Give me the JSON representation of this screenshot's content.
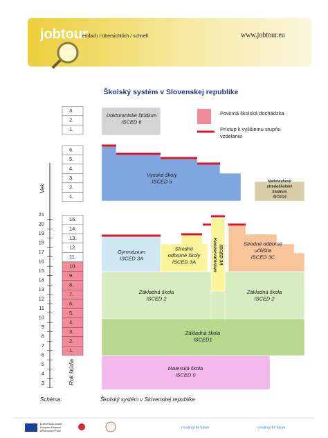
{
  "header": {
    "logo": "jobtour",
    "tagline": "einfach / übersichtlich / schnell",
    "url": "www.jobtour.eu"
  },
  "title": "Školský systém v Slovenskej republike",
  "age_axis": {
    "label": "Vek",
    "ages": [
      "3",
      "4",
      "5",
      "6",
      "7",
      "8",
      "9",
      "10",
      "11",
      "12",
      "13",
      "14",
      "15",
      "16",
      "17",
      "18",
      "19",
      "20",
      "21"
    ]
  },
  "year_axis": {
    "label": "Rok štúdia",
    "compulsory_years": [
      "1.",
      "2.",
      "3.",
      "4.",
      "5.",
      "6.",
      "7.",
      "8.",
      "9.",
      "10."
    ],
    "further_years": [
      "11.",
      "12.",
      "13.",
      "14.",
      "15."
    ],
    "university_years": [
      "1.",
      "2.",
      "3.",
      "4.",
      "5.",
      "6."
    ],
    "doctoral_years": [
      "1.",
      "2.",
      "3."
    ]
  },
  "legend": {
    "compulsory": "Povinná školská dochádzka",
    "access": [
      "Prístup k vyššiemu stupňu",
      "vzdelania"
    ]
  },
  "blocks": [
    {
      "lines": [
        "Doktorantské štúdium",
        "ISCED 6"
      ]
    },
    {
      "lines": [
        "Vysoké školy",
        "ISCED 5"
      ]
    },
    {
      "lines": [
        "Nadstavbové",
        "stredoškolské",
        "štúdium",
        "ISCED4"
      ]
    },
    {
      "lines": [
        "Gymnázium",
        "ISCED 3A"
      ]
    },
    {
      "lines": [
        "Stredné",
        "odborné školy",
        "ISCED 3A"
      ]
    },
    {
      "lines": [
        "Konzervatórium",
        "ISCED 3A"
      ]
    },
    {
      "lines": [
        "Stredné odborné",
        "učilištia",
        "ISCED 3C"
      ]
    },
    {
      "lines": [
        "Základná škola",
        "ISCED 2"
      ]
    },
    {
      "lines": [
        "Základná škola",
        "ISCED 2"
      ]
    },
    {
      "lines": [
        "Základná škola",
        "ISCED1"
      ]
    },
    {
      "lines": [
        "Materská škola",
        "ISCED 0"
      ]
    }
  ],
  "footer": {
    "label": "Schéma:",
    "text": "Školský systém v Slovenskej republike",
    "logos": [
      "EUROPEAN UNION",
      "European Regional",
      "Development Fund",
      "creating the future",
      "creating the future"
    ]
  }
}
